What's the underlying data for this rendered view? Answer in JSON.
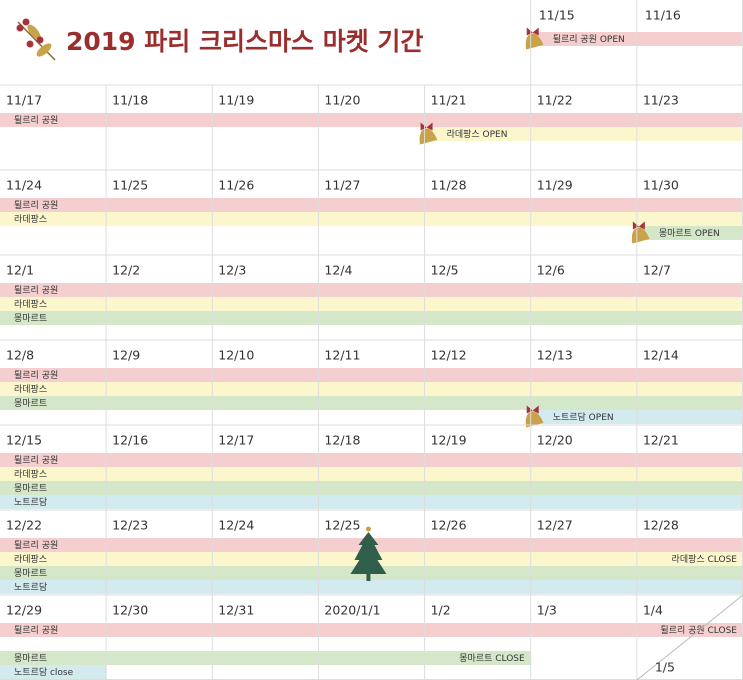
{
  "title": "2019 파리 크리스마스 마켓 기간",
  "header": {
    "days": [
      "11/15",
      "11/16"
    ],
    "labels": [
      "튈르리 공원 OPEN"
    ]
  },
  "weeks": [
    {
      "days": [
        "11/17",
        "11/18",
        "11/19",
        "11/20",
        "11/21",
        "11/22",
        "11/23"
      ],
      "labels": [
        "튈르리 공원",
        "라데팡스 OPEN"
      ]
    },
    {
      "days": [
        "11/24",
        "11/25",
        "11/26",
        "11/27",
        "11/28",
        "11/29",
        "11/30"
      ],
      "labels": [
        "튈르리 공원",
        "라데팡스",
        "몽마르트 OPEN"
      ]
    },
    {
      "days": [
        "12/1",
        "12/2",
        "12/3",
        "12/4",
        "12/5",
        "12/6",
        "12/7"
      ],
      "labels": [
        "튈르리 공원",
        "라데팡스",
        "몽마르트"
      ]
    },
    {
      "days": [
        "12/8",
        "12/9",
        "12/10",
        "12/11",
        "12/12",
        "12/13",
        "12/14"
      ],
      "labels": [
        "튈르리 공원",
        "라데팡스",
        "몽마르트",
        "노트르담 OPEN"
      ]
    },
    {
      "days": [
        "12/15",
        "12/16",
        "12/17",
        "12/18",
        "12/19",
        "12/20",
        "12/21"
      ],
      "labels": [
        "튈르리 공원",
        "라데팡스",
        "몽마르트",
        "노트르담"
      ]
    },
    {
      "days": [
        "12/22",
        "12/23",
        "12/24",
        "12/25",
        "12/26",
        "12/27",
        "12/28"
      ],
      "labels": [
        "튈르리 공원",
        "라데팡스",
        "라데팡스 CLOSE",
        "몽마르트",
        "노트르담"
      ]
    },
    {
      "days": [
        "12/29",
        "12/30",
        "12/31",
        "2020/1/1",
        "1/2",
        "1/3",
        "1/4"
      ],
      "labels": [
        "튈르리 공원",
        "튈르리 공원 CLOSE",
        "몽마르트",
        "몽마르트 CLOSE",
        "노트르담 close"
      ]
    }
  ],
  "extra_day": "1/5"
}
